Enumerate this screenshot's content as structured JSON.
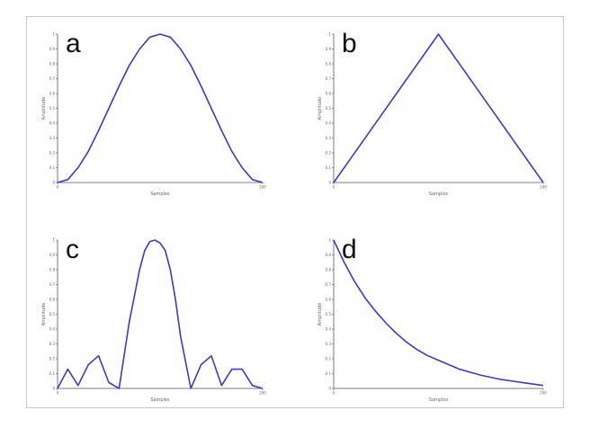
{
  "chart_data": [
    {
      "panel": "a",
      "type": "line",
      "color": "#3a3ad0",
      "xlabel": "Samples",
      "ylabel": "Amplitude",
      "xlim": [
        0,
        1
      ],
      "ylim": [
        0,
        1
      ],
      "x_ticks": [
        "0",
        "200"
      ],
      "y_ticks": [
        "0",
        "0.1",
        "0.2",
        "0.3",
        "0.4",
        "0.5",
        "0.6",
        "0.7",
        "0.8",
        "0.9",
        "1"
      ],
      "x": [
        0,
        0.05,
        0.1,
        0.15,
        0.2,
        0.25,
        0.3,
        0.35,
        0.4,
        0.45,
        0.5,
        0.55,
        0.6,
        0.65,
        0.7,
        0.75,
        0.8,
        0.85,
        0.9,
        0.95,
        1
      ],
      "y": [
        0,
        0.02,
        0.1,
        0.21,
        0.35,
        0.5,
        0.65,
        0.79,
        0.9,
        0.98,
        1,
        0.98,
        0.9,
        0.79,
        0.65,
        0.5,
        0.35,
        0.21,
        0.1,
        0.02,
        0
      ]
    },
    {
      "panel": "b",
      "type": "line",
      "color": "#3a3ad0",
      "xlabel": "Samples",
      "ylabel": "Amplitude",
      "xlim": [
        0,
        1
      ],
      "ylim": [
        0,
        1
      ],
      "x_ticks": [
        "0",
        "200"
      ],
      "y_ticks": [
        "0",
        "0.1",
        "0.2",
        "0.3",
        "0.4",
        "0.5",
        "0.6",
        "0.7",
        "0.8",
        "0.9",
        "1"
      ],
      "x": [
        0,
        0.5,
        1
      ],
      "y": [
        0,
        1,
        0
      ]
    },
    {
      "panel": "c",
      "type": "line",
      "color": "#3a3ad0",
      "xlabel": "Samples",
      "ylabel": "Amplitude",
      "xlim": [
        0,
        1
      ],
      "ylim": [
        0,
        1
      ],
      "x_ticks": [
        "0",
        "200"
      ],
      "y_ticks": [
        "0",
        "0.1",
        "0.2",
        "0.3",
        "0.4",
        "0.5",
        "0.6",
        "0.7",
        "0.8",
        "0.9",
        "1"
      ],
      "x": [
        0,
        0.05,
        0.1,
        0.15,
        0.2,
        0.25,
        0.3,
        0.35,
        0.4,
        0.425,
        0.45,
        0.475,
        0.5,
        0.525,
        0.55,
        0.575,
        0.6,
        0.65,
        0.7,
        0.75,
        0.8,
        0.85,
        0.9,
        0.95,
        1
      ],
      "y": [
        0,
        0.13,
        0.02,
        0.16,
        0.22,
        0.04,
        0,
        0.45,
        0.8,
        0.93,
        0.99,
        1,
        0.98,
        0.93,
        0.8,
        0.6,
        0.35,
        0,
        0.16,
        0.22,
        0.02,
        0.13,
        0.13,
        0.02,
        0
      ]
    },
    {
      "panel": "d",
      "type": "line",
      "color": "#3a3ad0",
      "xlabel": "Samples",
      "ylabel": "Amplitude",
      "xlim": [
        0,
        1
      ],
      "ylim": [
        0,
        1
      ],
      "x_ticks": [
        "0",
        "200"
      ],
      "y_ticks": [
        "0",
        "0.1",
        "0.2",
        "0.3",
        "0.4",
        "0.5",
        "0.6",
        "0.7",
        "0.8",
        "0.9",
        "1"
      ],
      "x": [
        0,
        0.05,
        0.1,
        0.15,
        0.2,
        0.25,
        0.3,
        0.35,
        0.4,
        0.45,
        0.5,
        0.55,
        0.6,
        0.65,
        0.7,
        0.75,
        0.8,
        0.85,
        0.9,
        0.95,
        1
      ],
      "y": [
        1,
        0.85,
        0.72,
        0.61,
        0.52,
        0.44,
        0.37,
        0.31,
        0.26,
        0.22,
        0.19,
        0.16,
        0.13,
        0.11,
        0.09,
        0.075,
        0.06,
        0.05,
        0.04,
        0.03,
        0.02
      ]
    }
  ]
}
